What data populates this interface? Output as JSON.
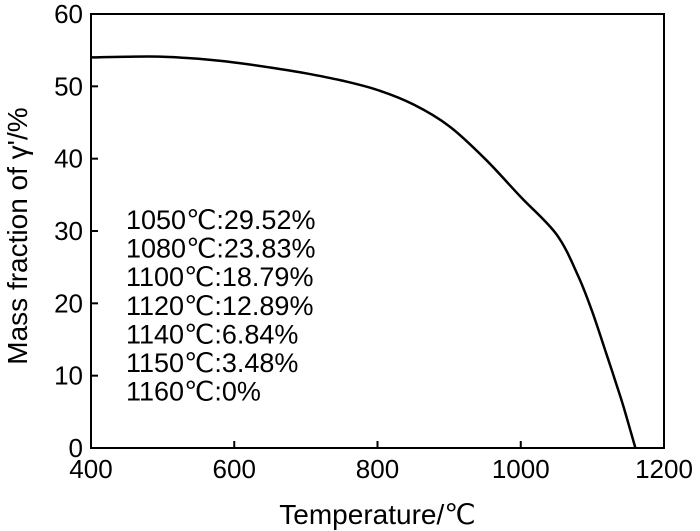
{
  "chart_data": {
    "type": "line",
    "xlabel": "Temperature/℃",
    "ylabel": "Mass fraction of γ'/%",
    "xlim": [
      400,
      1200
    ],
    "ylim": [
      0,
      60
    ],
    "xticks": [
      400,
      600,
      800,
      1000,
      1200
    ],
    "yticks": [
      0,
      10,
      20,
      30,
      40,
      50,
      60
    ],
    "grid": false,
    "legend": "none",
    "series": [
      {
        "x": [
          400,
          450,
          500,
          550,
          600,
          650,
          700,
          750,
          800,
          850,
          900,
          950,
          1000,
          1050,
          1080,
          1100,
          1120,
          1140,
          1150,
          1160
        ],
        "y": [
          54.0,
          54.1,
          54.1,
          53.8,
          53.3,
          52.6,
          51.8,
          50.8,
          49.5,
          47.5,
          44.5,
          40.0,
          34.7,
          29.52,
          23.83,
          18.79,
          12.89,
          6.84,
          3.48,
          0.0
        ]
      }
    ],
    "annotations": [
      "1050℃:29.52%",
      "1080℃:23.83%",
      "1100℃:18.79%",
      "1120℃:12.89%",
      "1140℃:6.84%",
      "1150℃:3.48%",
      "1160℃:0%"
    ]
  }
}
